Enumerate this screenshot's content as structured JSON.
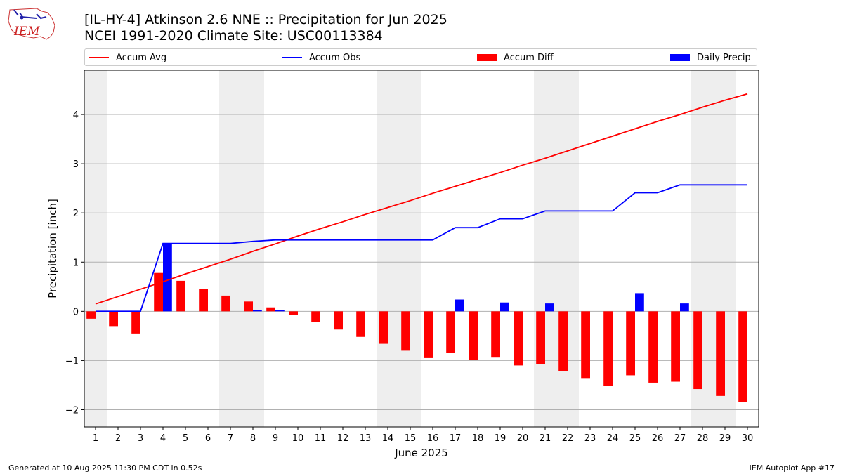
{
  "header": {
    "title_line1": "[IL-HY-4] Atkinson 2.6 NNE :: Precipitation for Jun 2025",
    "title_line2": "NCEI 1991-2020 Climate Site: USC00113384",
    "logo_text": "IEM"
  },
  "footer": {
    "left": "Generated at 10 Aug 2025 11:30 PM CDT in 0.52s",
    "right": "IEM Autoplot App #17"
  },
  "colors": {
    "accum_avg": "#ff0000",
    "accum_obs": "#0000ff",
    "accum_diff": "#ff0000",
    "daily_precip": "#0000ff",
    "weekend_shade": "#eeeeee",
    "grid": "#b0b0b0"
  },
  "chart_data": {
    "type": "bar",
    "xlabel": "June 2025",
    "ylabel": "Precipitation [inch]",
    "xlim": [
      0.5,
      30.5
    ],
    "ylim": [
      -2.35,
      4.9
    ],
    "yticks": [
      -2,
      -1,
      0,
      1,
      2,
      3,
      4
    ],
    "ytick_labels": [
      "−2",
      "−1",
      "0",
      "1",
      "2",
      "3",
      "4"
    ],
    "grid": "horizontal",
    "legend_position": "top",
    "legend": [
      "Accum Avg",
      "Accum Obs",
      "Accum Diff",
      "Daily Precip"
    ],
    "categories": [
      "1",
      "2",
      "3",
      "4",
      "5",
      "6",
      "7",
      "8",
      "9",
      "10",
      "11",
      "12",
      "13",
      "14",
      "15",
      "16",
      "17",
      "18",
      "19",
      "20",
      "21",
      "22",
      "23",
      "24",
      "25",
      "26",
      "27",
      "28",
      "29",
      "30"
    ],
    "shaded_days": [
      1,
      7,
      8,
      14,
      15,
      21,
      22,
      28,
      29
    ],
    "series": [
      {
        "name": "Accum Avg",
        "kind": "line",
        "values": [
          0.15,
          0.3,
          0.45,
          0.6,
          0.76,
          0.91,
          1.06,
          1.22,
          1.37,
          1.53,
          1.68,
          1.82,
          1.97,
          2.11,
          2.25,
          2.4,
          2.54,
          2.68,
          2.82,
          2.97,
          3.11,
          3.26,
          3.41,
          3.56,
          3.71,
          3.86,
          4.0,
          4.15,
          4.29,
          4.42
        ]
      },
      {
        "name": "Accum Obs",
        "kind": "step",
        "values": [
          0.0,
          0.0,
          0.0,
          1.38,
          1.38,
          1.38,
          1.38,
          1.42,
          1.45,
          1.45,
          1.45,
          1.45,
          1.45,
          1.45,
          1.45,
          1.45,
          1.7,
          1.7,
          1.88,
          1.88,
          2.04,
          2.04,
          2.04,
          2.04,
          2.41,
          2.41,
          2.57,
          2.57,
          2.57,
          2.57
        ]
      },
      {
        "name": "Accum Diff",
        "kind": "bar",
        "values": [
          -0.15,
          -0.3,
          -0.45,
          0.78,
          0.62,
          0.46,
          0.32,
          0.2,
          0.08,
          -0.07,
          -0.22,
          -0.37,
          -0.52,
          -0.66,
          -0.8,
          -0.95,
          -0.84,
          -0.98,
          -0.94,
          -1.1,
          -1.07,
          -1.22,
          -1.37,
          -1.52,
          -1.3,
          -1.45,
          -1.43,
          -1.58,
          -1.72,
          -1.85
        ]
      },
      {
        "name": "Daily Precip",
        "kind": "bar",
        "values": [
          0,
          0,
          0,
          1.38,
          0,
          0,
          0,
          0.03,
          0.03,
          0,
          0,
          0,
          0,
          0,
          0,
          0,
          0.24,
          0,
          0.18,
          0,
          0.16,
          0,
          0,
          0,
          0.37,
          0,
          0.16,
          0,
          0,
          0
        ]
      }
    ]
  }
}
